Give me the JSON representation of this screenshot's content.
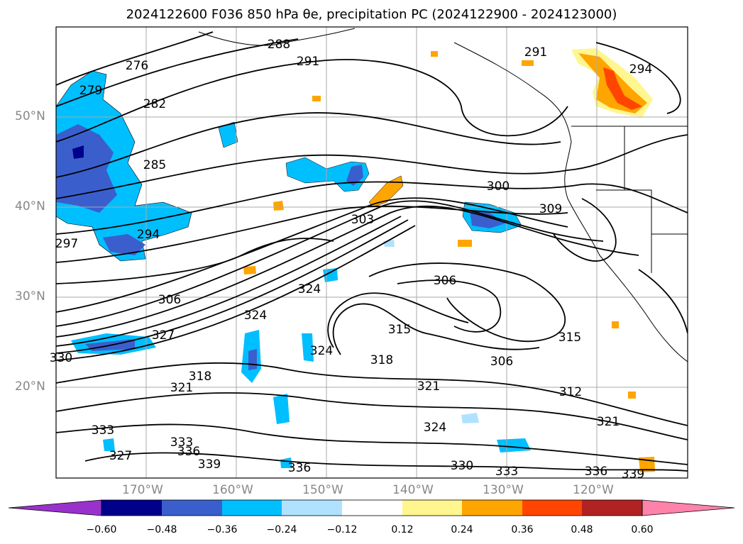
{
  "title": "2024122600 F036 850 hPa θe, precipitation PC (2024122900 - 2024123000)",
  "lat_labels": [
    "50°N",
    "40°N",
    "30°N",
    "20°N"
  ],
  "lon_labels": [
    "170°W",
    "160°W",
    "150°W",
    "140°W",
    "130°W",
    "120°W"
  ],
  "contour_labels": [
    "276",
    "279",
    "282",
    "285",
    "288",
    "291",
    "291",
    "294",
    "294",
    "297",
    "300",
    "303",
    "306",
    "306",
    "306",
    "309",
    "312",
    "315",
    "315",
    "318",
    "318",
    "321",
    "321",
    "321",
    "324",
    "324",
    "324",
    "324",
    "327",
    "327",
    "330",
    "330",
    "333",
    "333",
    "333",
    "336",
    "336",
    "336",
    "339",
    "339"
  ],
  "colorbar": {
    "ticks": [
      "−0.60",
      "−0.48",
      "−0.36",
      "−0.24",
      "−0.12",
      "0.12",
      "0.24",
      "0.36",
      "0.48",
      "0.60"
    ],
    "colors": [
      "#9932cc",
      "#00008b",
      "#3a5fcd",
      "#00bfff",
      "#b0e2ff",
      "#ffffff",
      "#fff68f",
      "#ffa500",
      "#ff4500",
      "#b22222",
      "#ff82ab"
    ]
  }
}
